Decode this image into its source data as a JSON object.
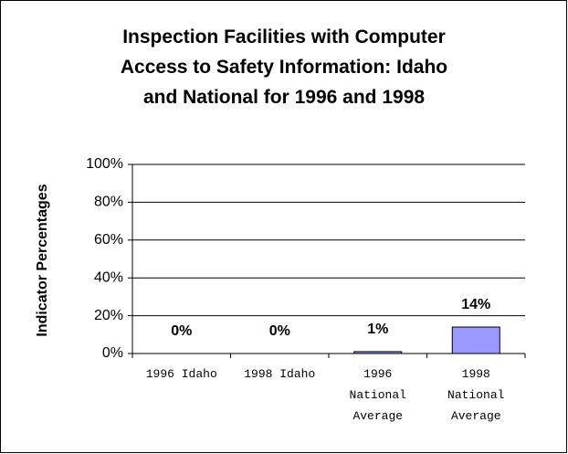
{
  "chart_data": {
    "type": "bar",
    "title": "Inspection Facilities with Computer Access to Safety Information: Idaho and National for 1996 and 1998",
    "y_label": "Indicator Percentages",
    "categories": [
      "1996 Idaho",
      "1998 Idaho",
      "1996 National Average",
      "1998 National Average"
    ],
    "values": [
      0,
      0,
      1,
      14
    ],
    "value_labels": [
      "0%",
      "0%",
      "1%",
      "14%"
    ],
    "color": "#9999ff",
    "ylim": [
      0,
      100
    ],
    "yticks": [
      {
        "value": 0,
        "label": "0%"
      },
      {
        "value": 20,
        "label": "20%"
      },
      {
        "value": 40,
        "label": "40%"
      },
      {
        "value": 60,
        "label": "60%"
      },
      {
        "value": 80,
        "label": "80%"
      },
      {
        "value": 100,
        "label": "100%"
      }
    ],
    "grid": true
  }
}
